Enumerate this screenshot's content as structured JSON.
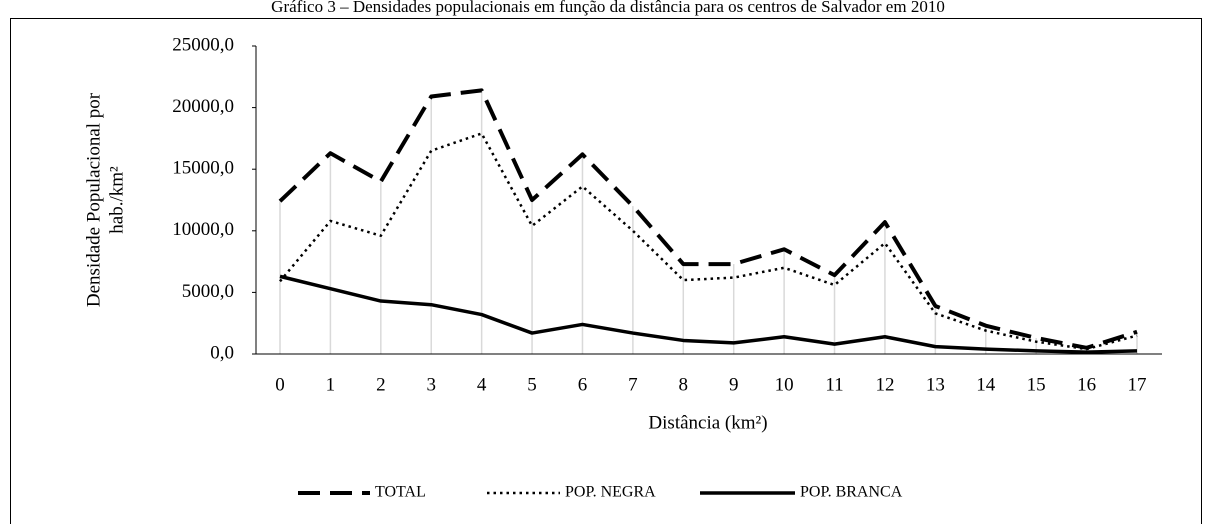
{
  "chart_data": {
    "type": "line",
    "title": "Gráfico 3 – Densidades populacionais em função da distância para os centros de Salvador em 2010",
    "y_label": [
      "Densidade Populacional por",
      "hab./km²"
    ],
    "x_label": "Distância (km²)",
    "categories": [
      "0",
      "1",
      "2",
      "3",
      "4",
      "5",
      "6",
      "7",
      "8",
      "9",
      "10",
      "11",
      "12",
      "13",
      "14",
      "15",
      "16",
      "17"
    ],
    "series": [
      {
        "name": "TOTAL",
        "color": "#000000",
        "dash": "dashed",
        "values": [
          12400,
          16300,
          14000,
          20900,
          21400,
          12500,
          16200,
          12000,
          7300,
          7300,
          8500,
          6400,
          10700,
          3900,
          2300,
          1300,
          500,
          1800
        ]
      },
      {
        "name": "POP. NEGRA",
        "color": "#000000",
        "dash": "dotted",
        "values": [
          5900,
          10800,
          9600,
          16500,
          17900,
          10400,
          13600,
          10000,
          6000,
          6200,
          7000,
          5600,
          9000,
          3300,
          1900,
          1000,
          400,
          1500
        ]
      },
      {
        "name": "POP. BRANCA",
        "color": "#000000",
        "dash": "solid",
        "values": [
          6300,
          5300,
          4300,
          4000,
          3200,
          1700,
          2400,
          1700,
          1100,
          900,
          1400,
          800,
          1400,
          600,
          400,
          250,
          150,
          250
        ]
      }
    ],
    "ylim": [
      0,
      25000
    ],
    "yticks": [
      {
        "value": 0,
        "label": "0,0"
      },
      {
        "value": 5000,
        "label": "5000,0"
      },
      {
        "value": 10000,
        "label": "10000,0"
      },
      {
        "value": 15000,
        "label": "15000,0"
      },
      {
        "value": 20000,
        "label": "20000,0"
      },
      {
        "value": 25000,
        "label": "25000,0"
      }
    ],
    "drop_lines": true,
    "legend": "bottom"
  }
}
